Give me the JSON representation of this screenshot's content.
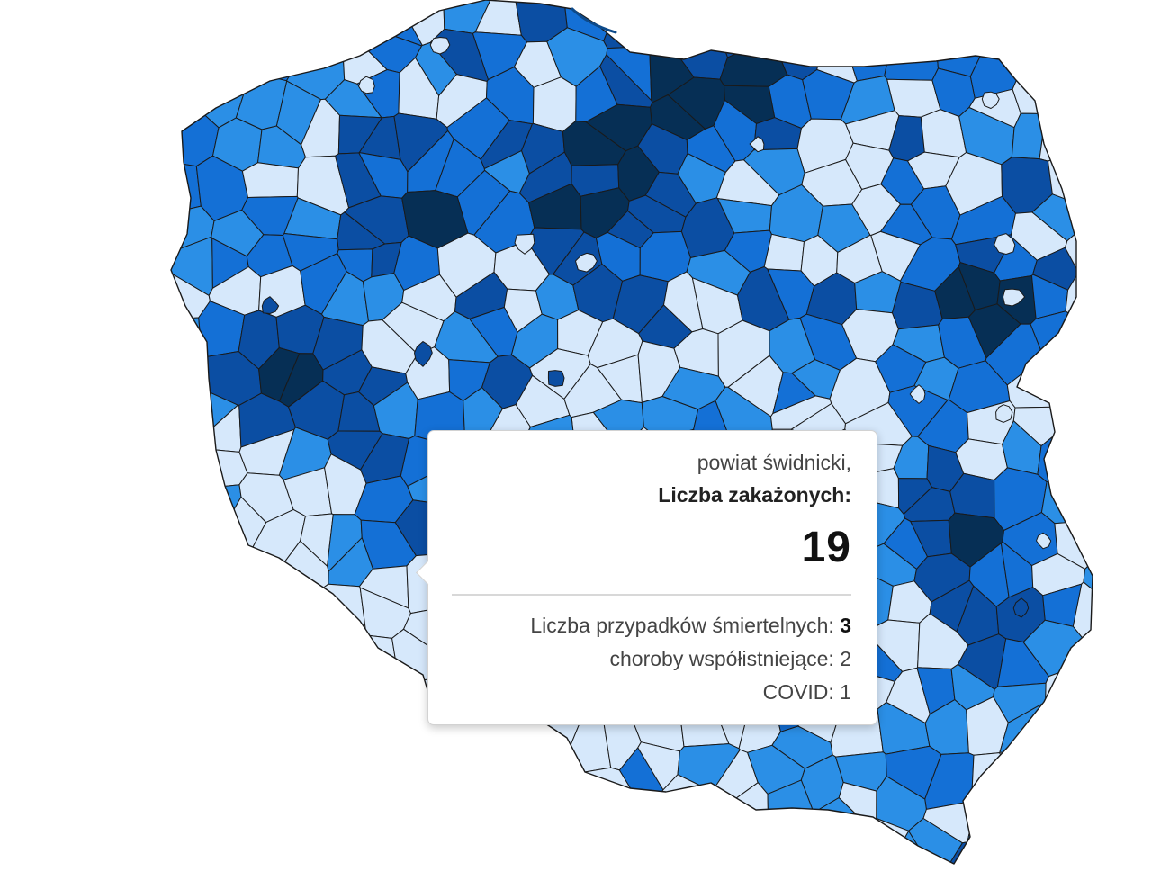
{
  "map": {
    "colors": {
      "very_light": "#d6e8fb",
      "light": "#2b8fe6",
      "mid": "#1470d6",
      "dark": "#0b4ea3",
      "darkest": "#062f55",
      "border": "#1a1a1a"
    },
    "legend_levels": [
      "very_light",
      "light",
      "mid",
      "dark",
      "darkest"
    ]
  },
  "tooltip": {
    "region_name": "powiat świdnicki,",
    "infected_label": "Liczba zakażonych:",
    "infected_value": "19",
    "deaths_label": "Liczba przypadków śmiertelnych:",
    "deaths_value": "3",
    "comorbid_label": "choroby współistniejące:",
    "comorbid_value": "2",
    "covid_label": "COVID:",
    "covid_value": "1"
  }
}
